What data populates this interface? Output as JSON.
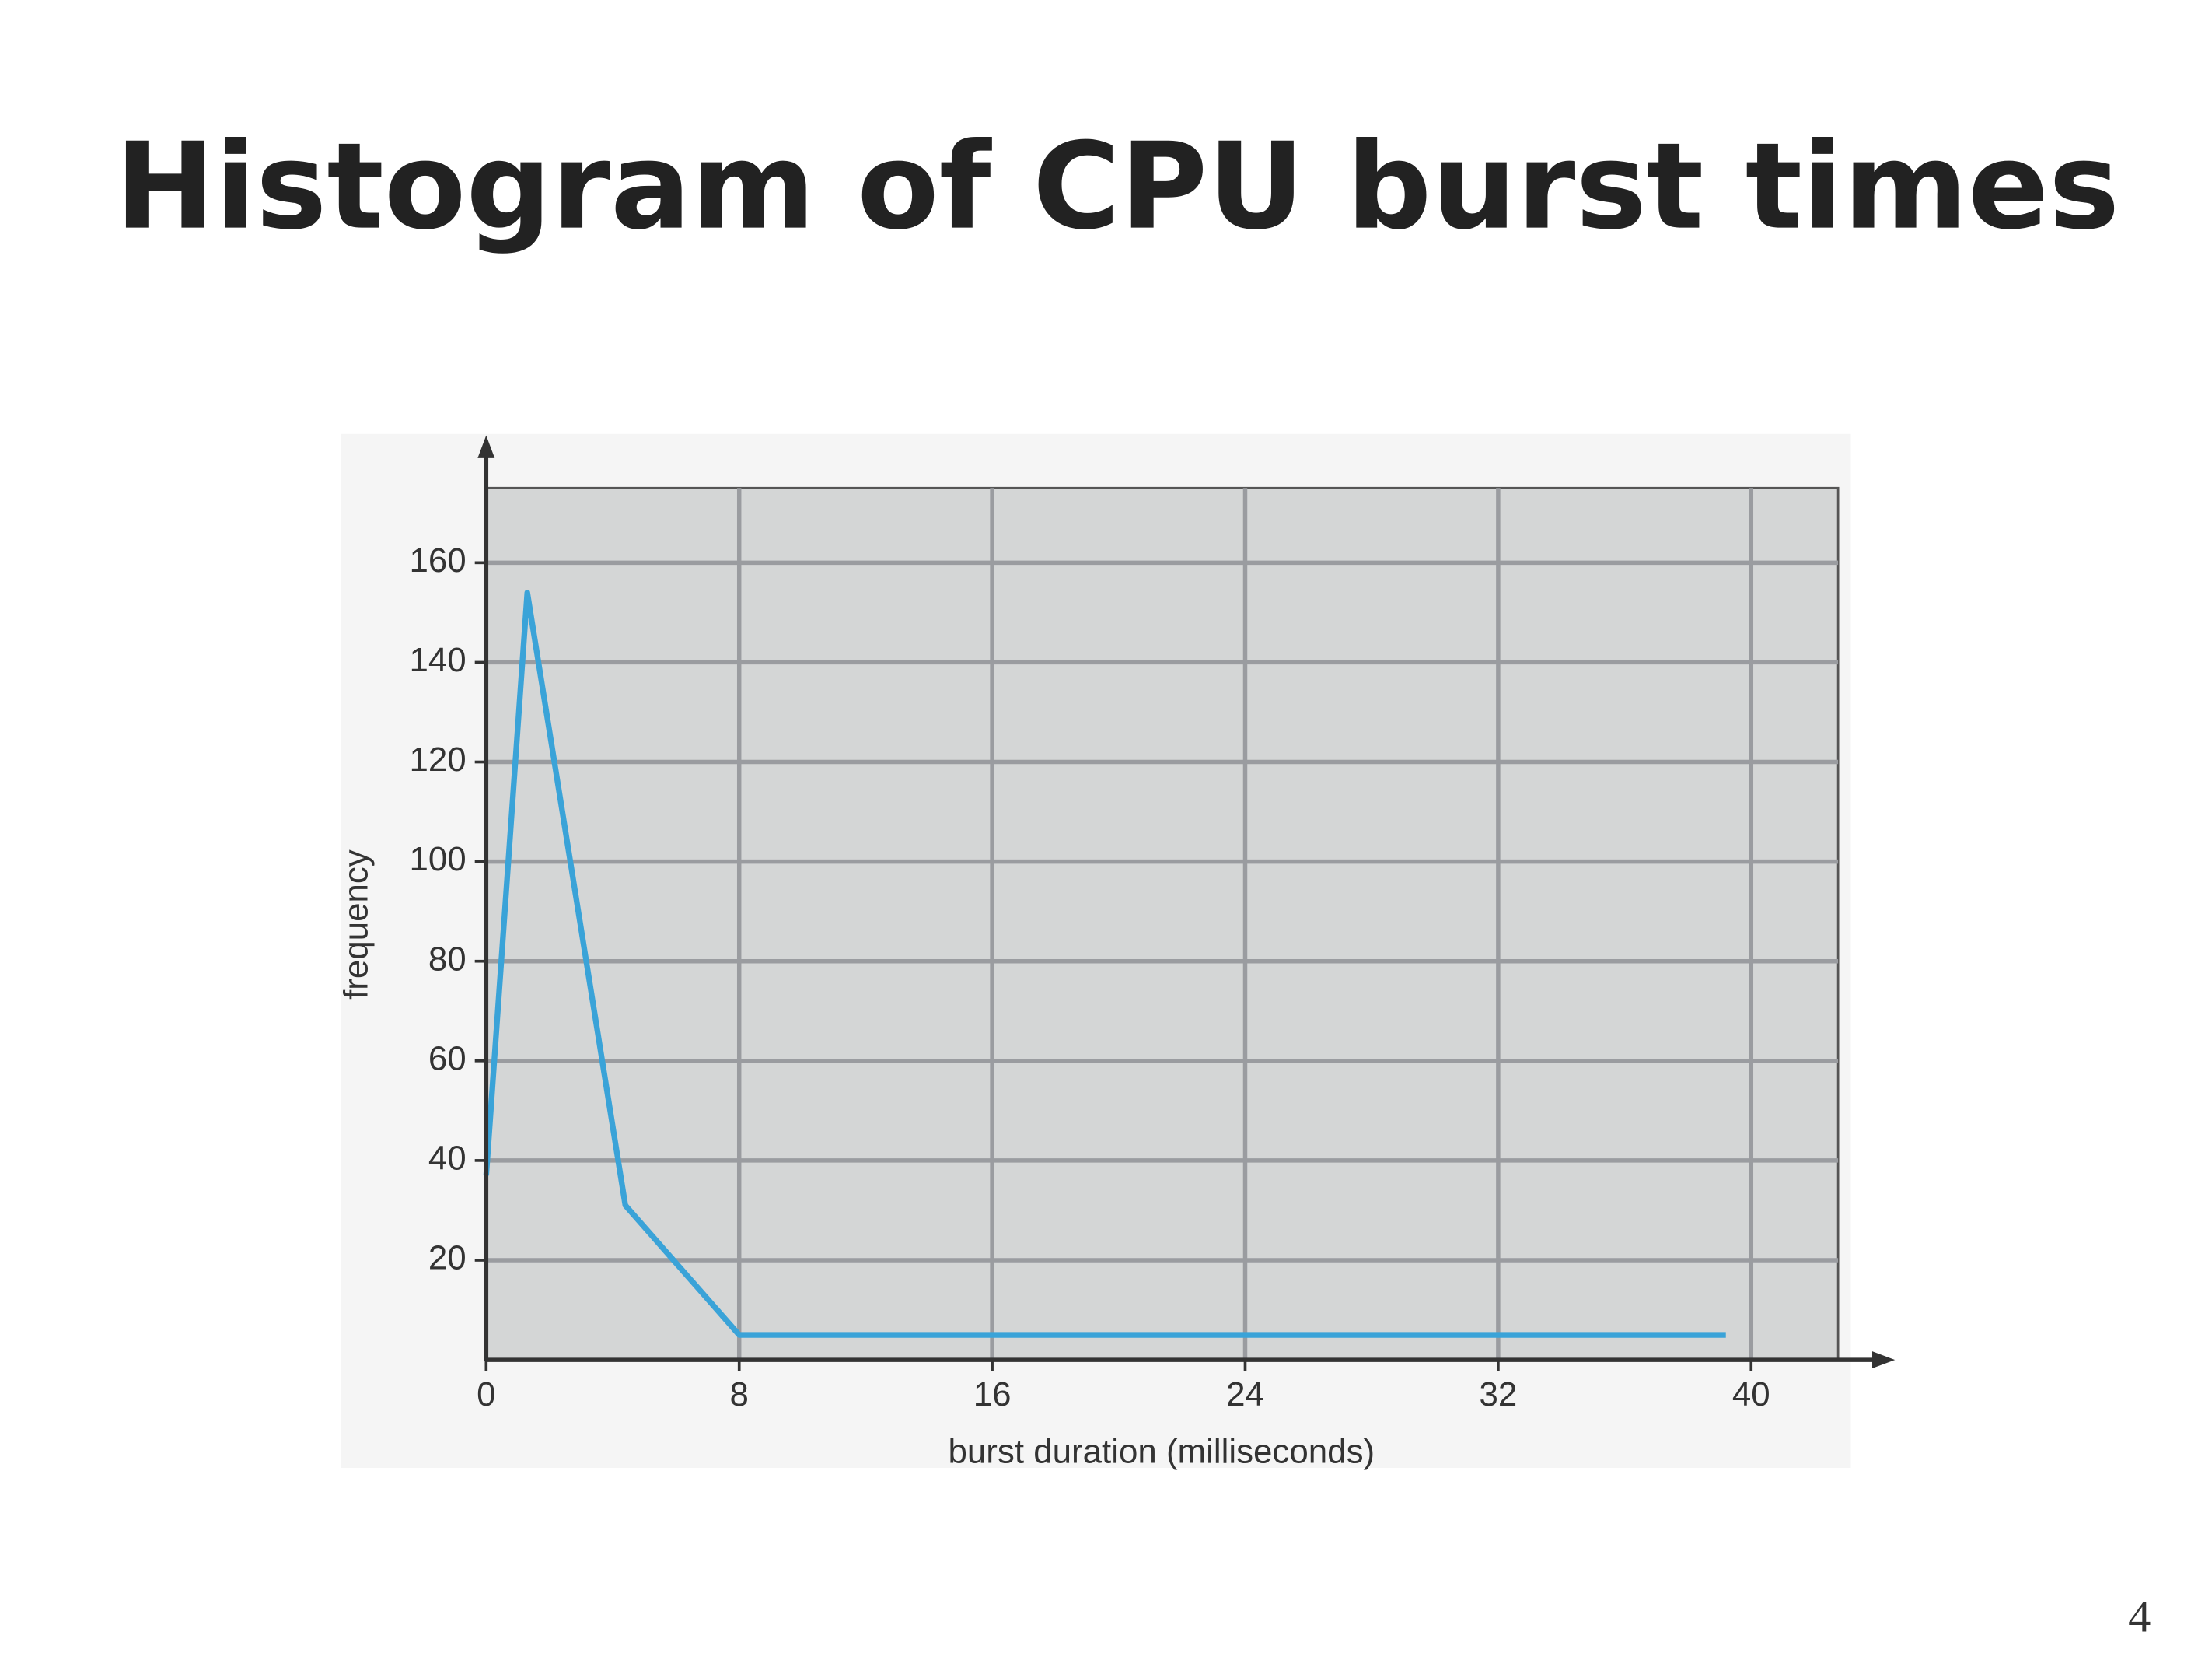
{
  "chart_data": {
    "type": "line",
    "title": "Histogram of CPU burst times",
    "x_label": "burst duration (milliseconds)",
    "y_label": "frequency",
    "x": [
      0,
      1.3,
      4.4,
      8,
      39.2
    ],
    "series": [
      {
        "color": "#3aa3d8",
        "values": [
          37,
          154,
          31,
          5,
          5
        ]
      }
    ],
    "xlim": [
      0,
      42.75
    ],
    "ylim": [
      0,
      175
    ],
    "xticks": [
      0,
      8,
      16,
      24,
      32,
      40
    ],
    "yticks": [
      20,
      40,
      60,
      80,
      100,
      120,
      140,
      160
    ],
    "grid": true
  },
  "page_number": "4"
}
